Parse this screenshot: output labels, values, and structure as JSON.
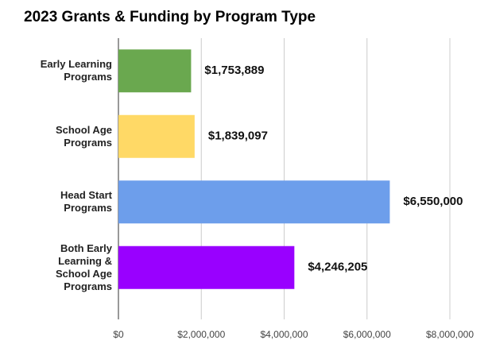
{
  "chart_data": {
    "type": "bar",
    "orientation": "horizontal",
    "title": "2023 Grants & Funding by Program Type",
    "categories": [
      "Early Learning Programs",
      "School Age Programs",
      "Head Start Programs",
      "Both Early Learning & School Age Programs"
    ],
    "values": [
      1753889,
      1839097,
      6550000,
      4246205
    ],
    "value_labels": [
      "$1,753,889",
      "$1,839,097",
      "$6,550,000",
      "$4,246,205"
    ],
    "colors": [
      "#6aa84f",
      "#ffd966",
      "#6d9eeb",
      "#9900ff"
    ],
    "xlim": [
      0,
      8000000
    ],
    "xticks": [
      {
        "value": 0,
        "label": "$0"
      },
      {
        "value": 2000000,
        "label": "$2,000,000"
      },
      {
        "value": 4000000,
        "label": "$4,000,000"
      },
      {
        "value": 6000000,
        "label": "$6,000,000"
      },
      {
        "value": 8000000,
        "label": "$8,000,000"
      }
    ],
    "grid": true
  }
}
